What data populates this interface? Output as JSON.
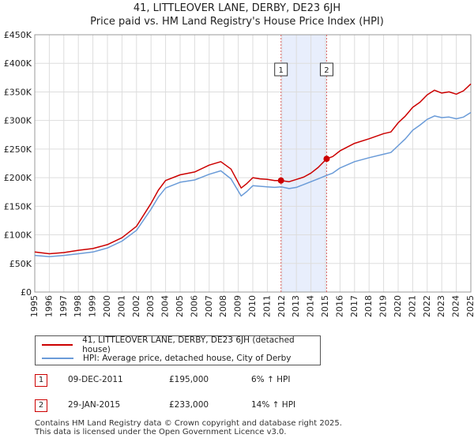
{
  "title_line1": "41, LITTLEOVER LANE, DERBY, DE23 6JH",
  "title_line2": "Price paid vs. HM Land Registry's House Price Index (HPI)",
  "legend": {
    "property_label": "41, LITTLEOVER LANE, DERBY, DE23 6JH (detached house)",
    "hpi_label": "HPI: Average price, detached house, City of Derby"
  },
  "sales": [
    {
      "num": "1",
      "date": "09-DEC-2011",
      "price": "£195,000",
      "hpi": "6% ↑ HPI"
    },
    {
      "num": "2",
      "date": "29-JAN-2015",
      "price": "£233,000",
      "hpi": "14% ↑ HPI"
    }
  ],
  "footer_line1": "Contains HM Land Registry data © Crown copyright and database right 2025.",
  "footer_line2": "This data is licensed under the Open Government Licence v3.0.",
  "colors": {
    "property": "#cc0000",
    "hpi": "#6a9bd8",
    "shade": "#e8eefc",
    "marker_line": "#dd6666",
    "grid": "#dddddd"
  },
  "chart_data": {
    "type": "line",
    "title": "41, LITTLEOVER LANE, DERBY, DE23 6JH",
    "subtitle": "Price paid vs. HM Land Registry's House Price Index (HPI)",
    "xlim": [
      1995,
      2025
    ],
    "ylim": [
      0,
      450000
    ],
    "x_ticks": [
      1995,
      1996,
      1997,
      1998,
      1999,
      2000,
      2001,
      2002,
      2003,
      2004,
      2005,
      2006,
      2007,
      2008,
      2009,
      2010,
      2011,
      2012,
      2013,
      2014,
      2015,
      2016,
      2017,
      2018,
      2019,
      2020,
      2021,
      2022,
      2023,
      2024,
      2025
    ],
    "y_ticks": [
      0,
      50000,
      100000,
      150000,
      200000,
      250000,
      300000,
      350000,
      400000,
      450000
    ],
    "y_tick_labels": [
      "£0",
      "£50K",
      "£100K",
      "£150K",
      "£200K",
      "£250K",
      "£300K",
      "£350K",
      "£400K",
      "£450K"
    ],
    "shaded_range": [
      2011.94,
      2015.08
    ],
    "markers": [
      {
        "label": "1",
        "x": 2011.94,
        "y": 195000
      },
      {
        "label": "2",
        "x": 2015.08,
        "y": 233000
      }
    ],
    "series": [
      {
        "name": "41, LITTLEOVER LANE, DERBY, DE23 6JH (detached house)",
        "color": "#cc0000",
        "x": [
          1995,
          1996,
          1997,
          1998,
          1999,
          2000,
          2001,
          2002,
          2003,
          2003.5,
          2004,
          2005,
          2006,
          2007,
          2007.8,
          2008.5,
          2009.2,
          2009.6,
          2010,
          2010.5,
          2011,
          2011.5,
          2011.94,
          2012.5,
          2013,
          2013.5,
          2014,
          2014.5,
          2015.08,
          2015.5,
          2016,
          2017,
          2018,
          2019,
          2019.5,
          2020,
          2020.5,
          2021,
          2021.5,
          2022,
          2022.5,
          2023,
          2023.5,
          2024,
          2024.5,
          2025
        ],
        "y": [
          70000,
          67000,
          69000,
          73000,
          76000,
          83000,
          95000,
          115000,
          155000,
          178000,
          195000,
          205000,
          210000,
          222000,
          228000,
          215000,
          182000,
          190000,
          200000,
          198000,
          197000,
          195000,
          195000,
          193000,
          197000,
          201000,
          208000,
          218000,
          233000,
          237000,
          247000,
          260000,
          268000,
          277000,
          280000,
          296000,
          308000,
          323000,
          332000,
          345000,
          353000,
          348000,
          350000,
          346000,
          352000,
          364000
        ]
      },
      {
        "name": "HPI: Average price, detached house, City of Derby",
        "color": "#6a9bd8",
        "x": [
          1995,
          1996,
          1997,
          1998,
          1999,
          2000,
          2001,
          2002,
          2003,
          2003.5,
          2004,
          2005,
          2006,
          2007,
          2007.8,
          2008.5,
          2009.2,
          2009.6,
          2010,
          2010.5,
          2011,
          2011.5,
          2011.94,
          2012.5,
          2013,
          2013.5,
          2014,
          2014.5,
          2015.08,
          2015.5,
          2016,
          2017,
          2018,
          2019,
          2019.5,
          2020,
          2020.5,
          2021,
          2021.5,
          2022,
          2022.5,
          2023,
          2023.5,
          2024,
          2024.5,
          2025
        ],
        "y": [
          64000,
          62000,
          64000,
          67000,
          70000,
          77000,
          89000,
          108000,
          145000,
          166000,
          182000,
          192000,
          196000,
          206000,
          212000,
          198000,
          168000,
          176000,
          186000,
          185000,
          184000,
          183000,
          184000,
          181000,
          183000,
          188000,
          193000,
          198000,
          204000,
          208000,
          217000,
          228000,
          235000,
          241000,
          244000,
          256000,
          268000,
          283000,
          292000,
          302000,
          308000,
          305000,
          306000,
          303000,
          306000,
          314000
        ]
      }
    ]
  }
}
